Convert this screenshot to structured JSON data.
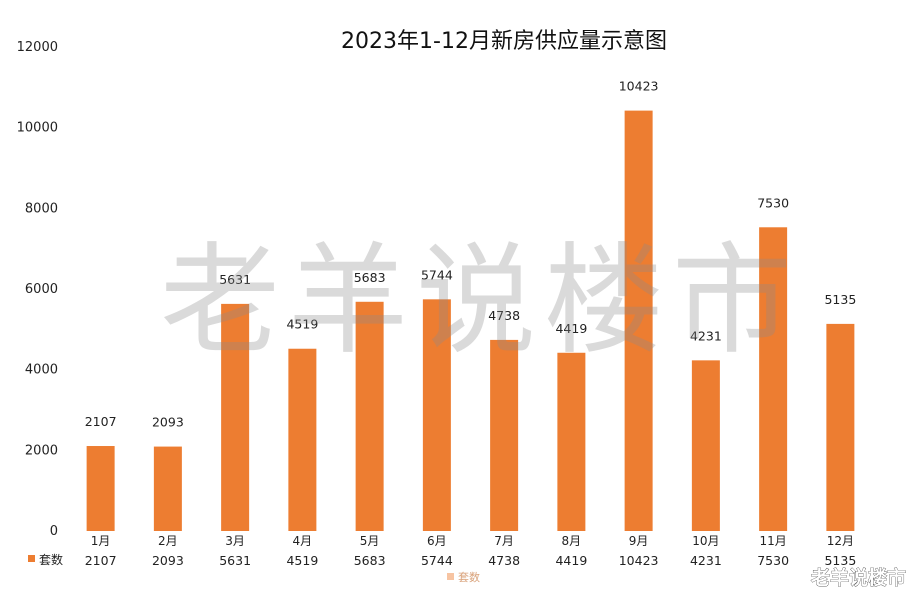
{
  "chart_data": {
    "type": "bar",
    "title": "2023年1-12月新房供应量示意图",
    "categories": [
      "1月",
      "2月",
      "3月",
      "4月",
      "5月",
      "6月",
      "7月",
      "8月",
      "9月",
      "10月",
      "11月",
      "12月"
    ],
    "series": [
      {
        "name": "套数",
        "values": [
          2107,
          2093,
          5631,
          4519,
          5683,
          5744,
          4738,
          4419,
          10423,
          4231,
          7530,
          5135
        ],
        "color": "#ED7D31"
      }
    ],
    "ylim": [
      0,
      12000
    ],
    "yticks": [
      0,
      2000,
      4000,
      6000,
      8000,
      10000,
      12000
    ],
    "data_labels": true,
    "data_table": true,
    "legend": "bottom"
  },
  "watermark": "老羊说楼市",
  "corner_watermark": "老羊说楼市"
}
